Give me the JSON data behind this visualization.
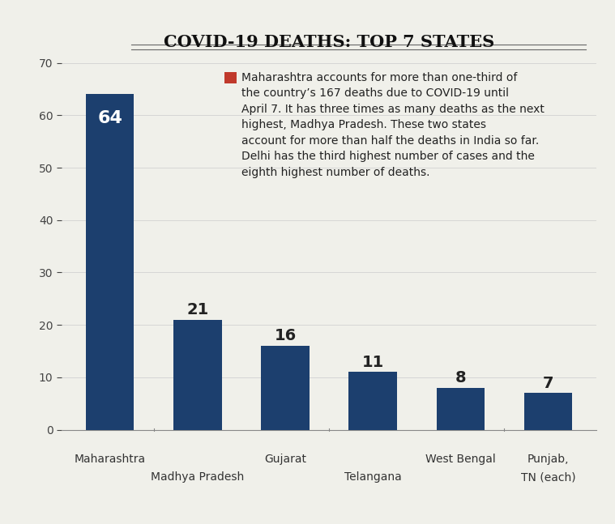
{
  "title": "COVID-19 DEATHS: TOP 7 STATES",
  "categories_row1": [
    "Maharashtra",
    "",
    "Gujarat",
    "",
    "West Bengal",
    "Punjab,"
  ],
  "categories_row2": [
    "",
    "Madhya Pradesh",
    "",
    "Telangana",
    "",
    "TN (each)"
  ],
  "values": [
    64,
    21,
    16,
    11,
    8,
    7
  ],
  "bar_color": "#1c3f6e",
  "value_labels": [
    "64",
    "21",
    "16",
    "11",
    "8",
    "7"
  ],
  "label_color_inside": "#ffffff",
  "label_color_outside": "#222222",
  "ylim": [
    0,
    70
  ],
  "yticks": [
    0,
    10,
    20,
    30,
    40,
    50,
    60,
    70
  ],
  "annotation_text": "Maharashtra accounts for more than one-third of\nthe country’s 167 deaths due to COVID-19 until\nApril 7. It has three times as many deaths as the next\nhighest, Madhya Pradesh. These two states\naccount for more than half the deaths in India so far.\nDelhi has the third highest number of cases and the\neighth highest number of deaths.",
  "legend_square_color": "#c0392b",
  "background_color": "#f0f0ea",
  "title_fontsize": 15,
  "bar_label_fontsize_inside": 16,
  "bar_label_fontsize_outside": 14,
  "tick_fontsize": 10,
  "annotation_fontsize": 10,
  "bar_width": 0.55
}
